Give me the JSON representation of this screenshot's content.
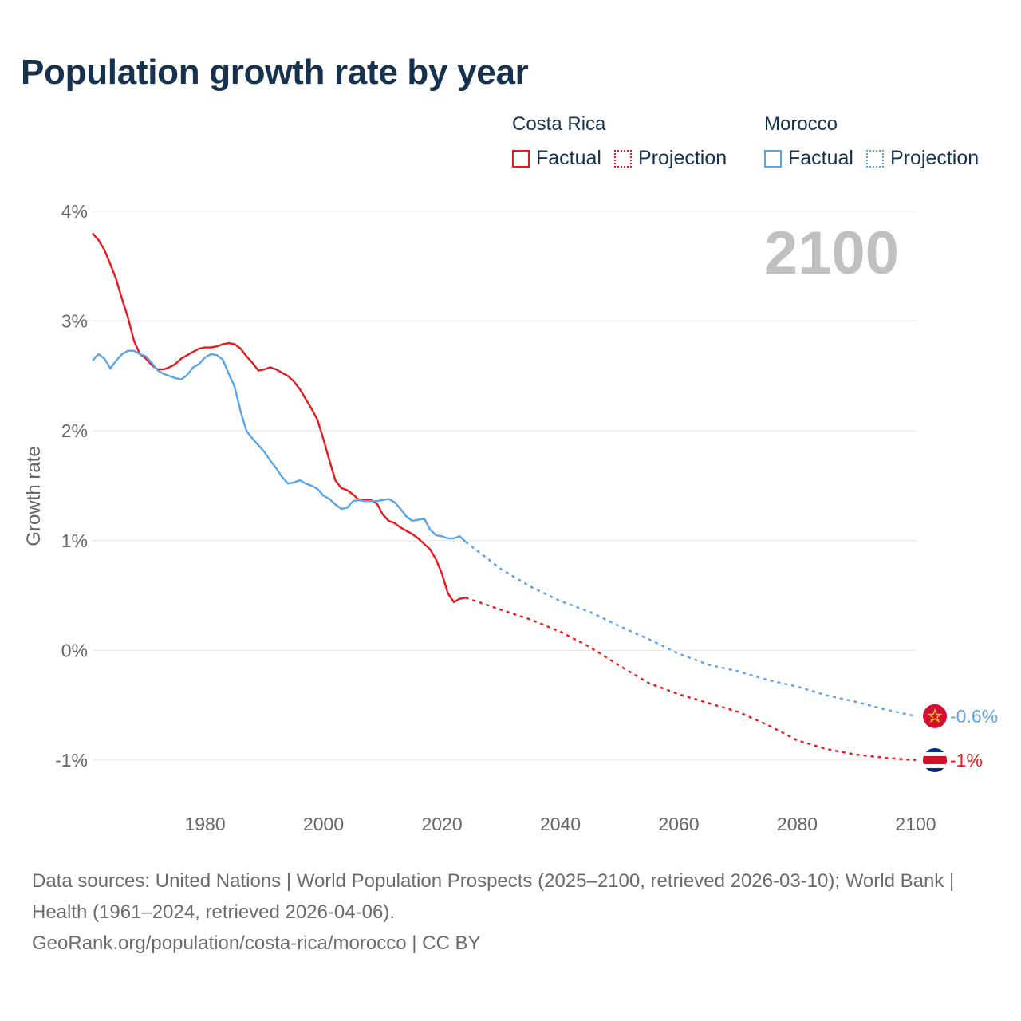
{
  "title": "Population growth rate by year",
  "legend": {
    "groups": [
      {
        "country": "Costa Rica",
        "color": "#e8191d",
        "factual_label": "Factual",
        "projection_label": "Projection"
      },
      {
        "country": "Morocco",
        "color": "#5ba4e6",
        "factual_label": "Factual",
        "projection_label": "Projection"
      }
    ]
  },
  "year_label": "2100",
  "footer": {
    "sources": "Data sources: United Nations | World Population Prospects (2025–2100, retrieved 2026-03-10); World Bank | Health (1961–2024, retrieved 2026-04-06).",
    "credit": "GeoRank.org/population/costa-rica/morocco | CC BY"
  },
  "chart_data": {
    "type": "line",
    "title": "Population growth rate by year",
    "xlabel": "",
    "ylabel": "Growth rate",
    "xlim": [
      1961,
      2100
    ],
    "ylim": [
      -1.4,
      4.0
    ],
    "grid": true,
    "x_ticks": [
      1980,
      2000,
      2020,
      2040,
      2060,
      2080,
      2100
    ],
    "y_ticks": [
      {
        "value": 4,
        "label": "4%"
      },
      {
        "value": 3,
        "label": "3%"
      },
      {
        "value": 2,
        "label": "2%"
      },
      {
        "value": 1,
        "label": "1%"
      },
      {
        "value": 0,
        "label": "0%"
      },
      {
        "value": -1,
        "label": "-1%"
      }
    ],
    "series": [
      {
        "name": "Costa Rica",
        "color": "#e8191d",
        "end_label": "-1%",
        "factual": {
          "x": [
            1961,
            1962,
            1963,
            1964,
            1965,
            1966,
            1967,
            1968,
            1969,
            1970,
            1971,
            1972,
            1973,
            1974,
            1975,
            1976,
            1977,
            1978,
            1979,
            1980,
            1981,
            1982,
            1983,
            1984,
            1985,
            1986,
            1987,
            1988,
            1989,
            1990,
            1991,
            1992,
            1993,
            1994,
            1995,
            1996,
            1997,
            1998,
            1999,
            2000,
            2001,
            2002,
            2003,
            2004,
            2005,
            2006,
            2007,
            2008,
            2009,
            2010,
            2011,
            2012,
            2013,
            2014,
            2015,
            2016,
            2017,
            2018,
            2019,
            2020,
            2021,
            2022,
            2023,
            2024
          ],
          "y": [
            3.8,
            3.74,
            3.65,
            3.52,
            3.38,
            3.2,
            3.03,
            2.82,
            2.7,
            2.66,
            2.6,
            2.56,
            2.56,
            2.58,
            2.61,
            2.66,
            2.69,
            2.72,
            2.75,
            2.76,
            2.76,
            2.77,
            2.79,
            2.8,
            2.79,
            2.75,
            2.68,
            2.62,
            2.55,
            2.56,
            2.58,
            2.56,
            2.53,
            2.5,
            2.45,
            2.38,
            2.29,
            2.2,
            2.1,
            1.92,
            1.73,
            1.55,
            1.48,
            1.46,
            1.42,
            1.37,
            1.37,
            1.37,
            1.34,
            1.24,
            1.18,
            1.16,
            1.12,
            1.09,
            1.06,
            1.02,
            0.97,
            0.92,
            0.83,
            0.7,
            0.52,
            0.44,
            0.47,
            0.48
          ]
        },
        "projection": {
          "x": [
            2024,
            2030,
            2035,
            2040,
            2045,
            2050,
            2055,
            2060,
            2065,
            2070,
            2075,
            2080,
            2085,
            2090,
            2095,
            2100
          ],
          "y": [
            0.48,
            0.37,
            0.28,
            0.17,
            0.03,
            -0.14,
            -0.3,
            -0.4,
            -0.48,
            -0.56,
            -0.68,
            -0.82,
            -0.9,
            -0.95,
            -0.98,
            -1.0
          ]
        }
      },
      {
        "name": "Morocco",
        "color": "#5ba4e6",
        "end_label": "-0.6%",
        "factual": {
          "x": [
            1961,
            1962,
            1963,
            1964,
            1965,
            1966,
            1967,
            1968,
            1969,
            1970,
            1971,
            1972,
            1973,
            1974,
            1975,
            1976,
            1977,
            1978,
            1979,
            1980,
            1981,
            1982,
            1983,
            1984,
            1985,
            1986,
            1987,
            1988,
            1989,
            1990,
            1991,
            1992,
            1993,
            1994,
            1995,
            1996,
            1997,
            1998,
            1999,
            2000,
            2001,
            2002,
            2003,
            2004,
            2005,
            2006,
            2007,
            2008,
            2009,
            2010,
            2011,
            2012,
            2013,
            2014,
            2015,
            2016,
            2017,
            2018,
            2019,
            2020,
            2021,
            2022,
            2023,
            2024
          ],
          "y": [
            2.64,
            2.7,
            2.66,
            2.57,
            2.64,
            2.7,
            2.73,
            2.73,
            2.7,
            2.68,
            2.62,
            2.55,
            2.52,
            2.5,
            2.48,
            2.47,
            2.51,
            2.58,
            2.61,
            2.67,
            2.7,
            2.69,
            2.65,
            2.52,
            2.4,
            2.18,
            2.0,
            1.93,
            1.87,
            1.81,
            1.73,
            1.66,
            1.58,
            1.52,
            1.53,
            1.55,
            1.52,
            1.5,
            1.47,
            1.41,
            1.38,
            1.33,
            1.29,
            1.3,
            1.36,
            1.37,
            1.36,
            1.36,
            1.36,
            1.37,
            1.38,
            1.35,
            1.29,
            1.22,
            1.18,
            1.19,
            1.2,
            1.1,
            1.05,
            1.04,
            1.02,
            1.02,
            1.04,
            0.99
          ]
        },
        "projection": {
          "x": [
            2024,
            2030,
            2035,
            2040,
            2045,
            2050,
            2055,
            2060,
            2065,
            2070,
            2075,
            2080,
            2085,
            2090,
            2095,
            2100
          ],
          "y": [
            0.99,
            0.74,
            0.58,
            0.45,
            0.35,
            0.22,
            0.1,
            -0.03,
            -0.13,
            -0.19,
            -0.27,
            -0.33,
            -0.41,
            -0.47,
            -0.54,
            -0.6
          ]
        }
      }
    ]
  }
}
